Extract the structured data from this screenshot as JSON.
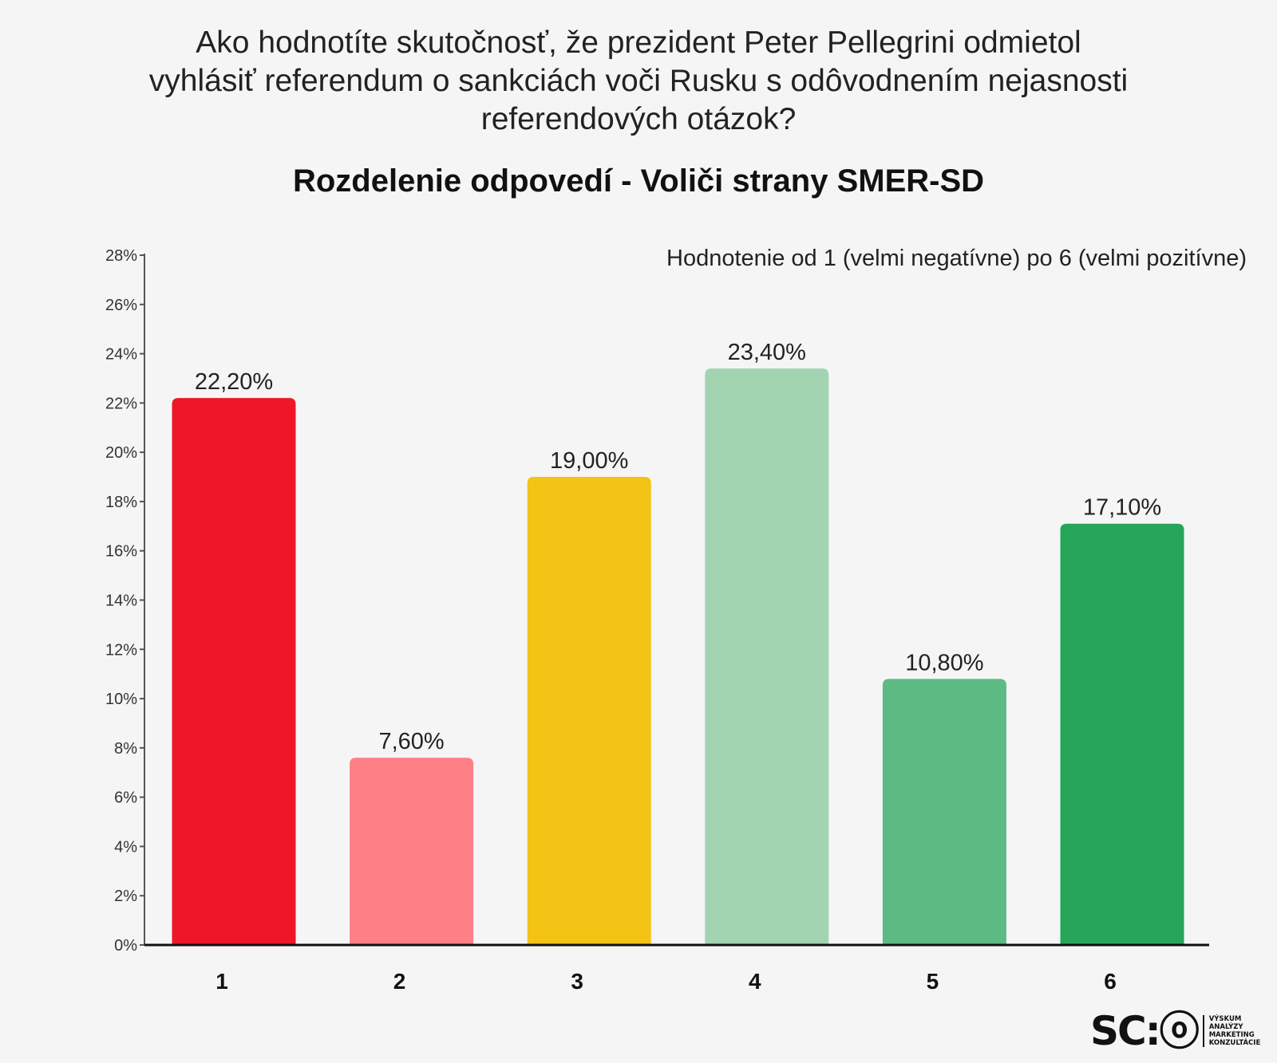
{
  "header": {
    "question_lines": [
      "Ako hodnotíte skutočnosť, že prezident Peter Pellegrini odmietol",
      "vyhlásiť referendum o sankciách voči Rusku s odôvodnením nejasnosti",
      "referendových otázok?"
    ],
    "subtitle": "Rozdelenie odpovedí - Voliči strany SMER-SD"
  },
  "chart_data": {
    "type": "bar",
    "title": "Rozdelenie odpovedí - Voliči strany SMER-SD",
    "annotation": "Hodnotenie  od 1 (velmi negatívne) po 6 (velmi pozitívne)",
    "categories": [
      "1",
      "2",
      "3",
      "4",
      "5",
      "6"
    ],
    "values": [
      22.2,
      7.6,
      19.0,
      23.4,
      10.8,
      17.1
    ],
    "value_labels": [
      "22,20%",
      "7,60%",
      "19,00%",
      "23,40%",
      "10,80%",
      "17,10%"
    ],
    "bar_colors": [
      "#ee1628",
      "#ff7f87",
      "#f3c315",
      "#a2d4b2",
      "#5dba83",
      "#27a55a"
    ],
    "ylim": [
      0,
      28
    ],
    "yticks": [
      0,
      2,
      4,
      6,
      8,
      10,
      12,
      14,
      16,
      18,
      20,
      22,
      24,
      26,
      28
    ],
    "ytick_labels": [
      "0%",
      "2%",
      "4%",
      "6%",
      "8%",
      "10%",
      "12%",
      "14%",
      "16%",
      "18%",
      "20%",
      "22%",
      "24%",
      "26%",
      "28%"
    ],
    "xlabel": "",
    "ylabel": "",
    "grid": false,
    "legend": "none"
  },
  "logo": {
    "mark": "SC:ⓞ",
    "lines": [
      "VÝSKUM",
      "ANALÝZY",
      "MARKETING",
      "KONZULTÁCIE"
    ]
  }
}
